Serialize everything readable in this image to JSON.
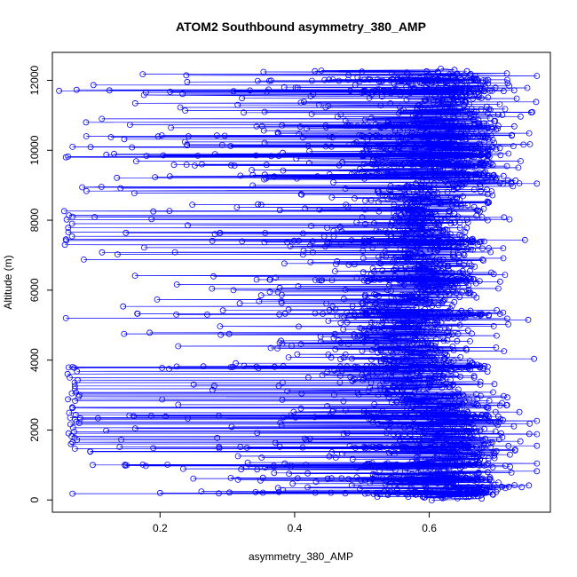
{
  "chart_data": {
    "type": "scatter",
    "title": "ATOM2 Southbound asymmetry_380_AMP",
    "xlabel": "asymmetry_380_AMP",
    "ylabel": "Altitude (m)",
    "xlim": [
      0.04,
      0.78
    ],
    "ylim": [
      -350,
      12800
    ],
    "x_ticks": [
      {
        "value": 0.2,
        "label": "0.2"
      },
      {
        "value": 0.4,
        "label": "0.4"
      },
      {
        "value": 0.6,
        "label": "0.6"
      }
    ],
    "y_ticks": [
      {
        "value": 0,
        "label": "0"
      },
      {
        "value": 2000,
        "label": "2000"
      },
      {
        "value": 4000,
        "label": "4000"
      },
      {
        "value": 6000,
        "label": "6000"
      },
      {
        "value": 8000,
        "label": "8000"
      },
      {
        "value": 10000,
        "label": "10000"
      },
      {
        "value": 12000,
        "label": "12000"
      }
    ],
    "marker": "open-circle",
    "connected": true,
    "grid": false,
    "series_color": "#0000ff",
    "approx_points_sampled": [
      {
        "x": 0.62,
        "y": 50
      },
      {
        "x": 0.58,
        "y": 150
      },
      {
        "x": 0.2,
        "y": 200
      },
      {
        "x": 0.07,
        "y": 180
      },
      {
        "x": 0.66,
        "y": 300
      },
      {
        "x": 0.67,
        "y": 600
      },
      {
        "x": 0.64,
        "y": 1000
      },
      {
        "x": 0.1,
        "y": 1000
      },
      {
        "x": 0.76,
        "y": 1550
      },
      {
        "x": 0.19,
        "y": 1480
      },
      {
        "x": 0.07,
        "y": 1650
      },
      {
        "x": 0.08,
        "y": 2200
      },
      {
        "x": 0.69,
        "y": 2250
      },
      {
        "x": 0.08,
        "y": 3000
      },
      {
        "x": 0.25,
        "y": 3300
      },
      {
        "x": 0.07,
        "y": 3800
      },
      {
        "x": 0.7,
        "y": 4700
      },
      {
        "x": 0.06,
        "y": 5200
      },
      {
        "x": 0.27,
        "y": 5300
      },
      {
        "x": 0.06,
        "y": 7450
      },
      {
        "x": 0.71,
        "y": 7200
      },
      {
        "x": 0.07,
        "y": 8100
      },
      {
        "x": 0.19,
        "y": 8250
      },
      {
        "x": 0.06,
        "y": 9800
      },
      {
        "x": 0.68,
        "y": 9600
      },
      {
        "x": 0.07,
        "y": 10100
      },
      {
        "x": 0.09,
        "y": 10800
      },
      {
        "x": 0.05,
        "y": 11700
      },
      {
        "x": 0.48,
        "y": 10700
      },
      {
        "x": 0.69,
        "y": 11700
      },
      {
        "x": 0.48,
        "y": 12150
      },
      {
        "x": 0.5,
        "y": 12250
      },
      {
        "x": 0.68,
        "y": 12000
      }
    ]
  }
}
